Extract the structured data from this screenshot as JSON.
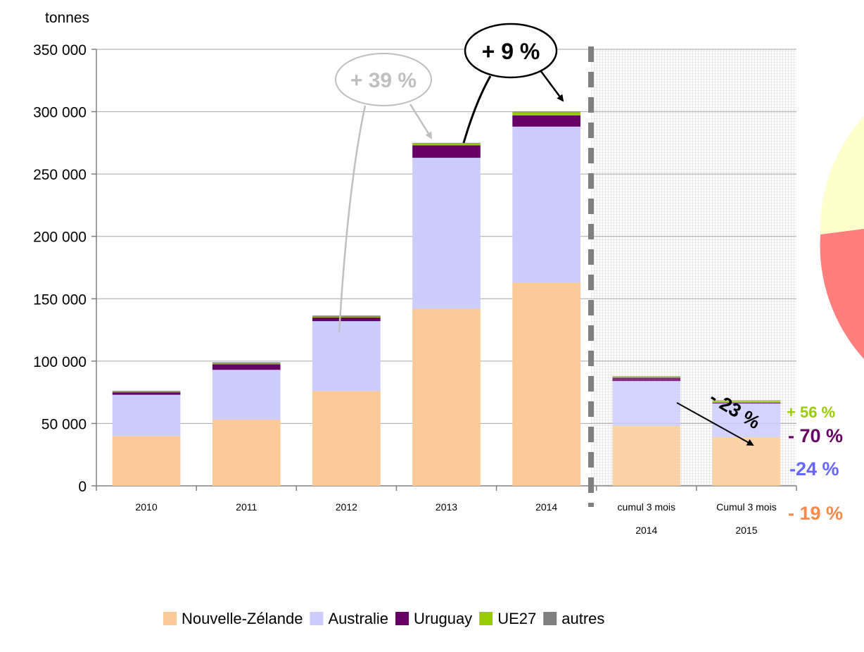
{
  "chart_data": {
    "type": "bar",
    "stacked": true,
    "ylabel": "tonnes",
    "ylim": [
      0,
      350000
    ],
    "yticks": [
      0,
      50000,
      100000,
      150000,
      200000,
      250000,
      300000,
      350000
    ],
    "ytick_labels": [
      "0",
      "50 000",
      "100 000",
      "150 000",
      "200 000",
      "250 000",
      "300 000",
      "350 000"
    ],
    "grid": true,
    "legend_position": "bottom",
    "categories": [
      {
        "line1": "2010",
        "line2": ""
      },
      {
        "line1": "2011",
        "line2": ""
      },
      {
        "line1": "2012",
        "line2": ""
      },
      {
        "line1": "2013",
        "line2": ""
      },
      {
        "line1": "2014",
        "line2": ""
      },
      {
        "line1": "cumul 3 mois",
        "line2": "2014"
      },
      {
        "line1": "Cumul 3 mois",
        "line2": "2015"
      }
    ],
    "series": [
      {
        "name": "Nouvelle-Zélande",
        "color": "#FCCA96",
        "values": [
          40000,
          53000,
          76000,
          142000,
          163000,
          48000,
          39000
        ]
      },
      {
        "name": "Australie",
        "color": "#CCCCFF",
        "values": [
          33000,
          40000,
          56000,
          121000,
          125000,
          36000,
          27000
        ]
      },
      {
        "name": "Uruguay",
        "color": "#660066",
        "values": [
          2000,
          4500,
          3000,
          10000,
          9000,
          2700,
          800
        ]
      },
      {
        "name": "UE27",
        "color": "#99CC00",
        "values": [
          300,
          500,
          500,
          1500,
          2500,
          1000,
          1600
        ]
      },
      {
        "name": "autres",
        "color": "#808080",
        "values": [
          800,
          1000,
          1000,
          500,
          500,
          300,
          200
        ]
      }
    ],
    "annotations": [
      {
        "text": "+ 39 %",
        "color": "#BFBFBF"
      },
      {
        "text": "+ 9 %",
        "color": "#000000"
      },
      {
        "text": "- 23 %",
        "color": "#000000"
      },
      {
        "text": "+ 56 %",
        "color": "#99CC00"
      },
      {
        "text": "- 70 %",
        "color": "#660066"
      },
      {
        "text": "-24 %",
        "color": "#6666FF"
      },
      {
        "text": "- 19 %",
        "color": "#F58A4B"
      }
    ]
  }
}
